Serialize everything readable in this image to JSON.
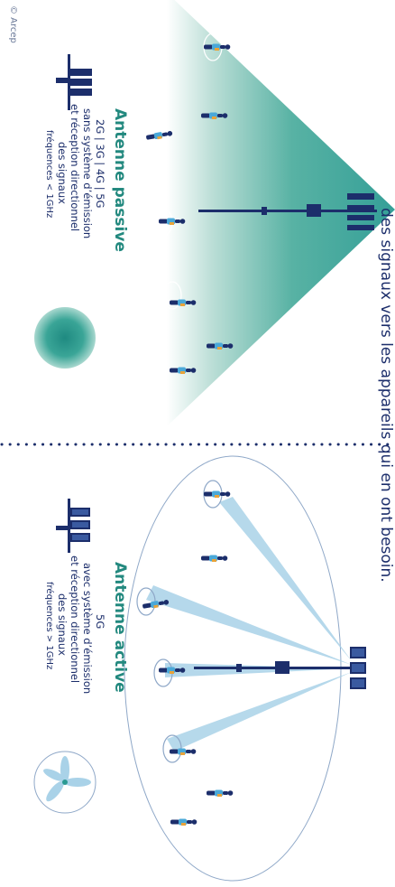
{
  "credit": "© Arcep",
  "top_caption": "des signaux vers les appareils qui en ont besoin.",
  "colors": {
    "navy": "#1c2e6b",
    "teal": "#2a9a92",
    "teal_title": "#23897f",
    "beam": "#a9d2e8",
    "ellipse": "#8fa8c8",
    "pink": "#d2a7be",
    "person_vest": "#e8a33a",
    "person_shirt": "#4aa8d8"
  },
  "passive": {
    "title": "Antenne passive",
    "generations": "2G | 3G | 4G | 5G",
    "desc_line1": "sans système d’émission",
    "desc_line2": "et réception directionnel",
    "desc_line3": "des signaux",
    "freq": "fréquences < 1GHz",
    "icon": "passive-antenna-icon",
    "symbol": "omnidirectional-disc-icon"
  },
  "active": {
    "title": "Antenne active",
    "generations": "5G",
    "desc_line1": "avec système d’émission",
    "desc_line2": "et réception directionnel",
    "desc_line3": "des signaux",
    "freq": "fréquences > 1GHz",
    "icon": "active-antenna-icon",
    "symbol": "beam-petals-icon"
  }
}
